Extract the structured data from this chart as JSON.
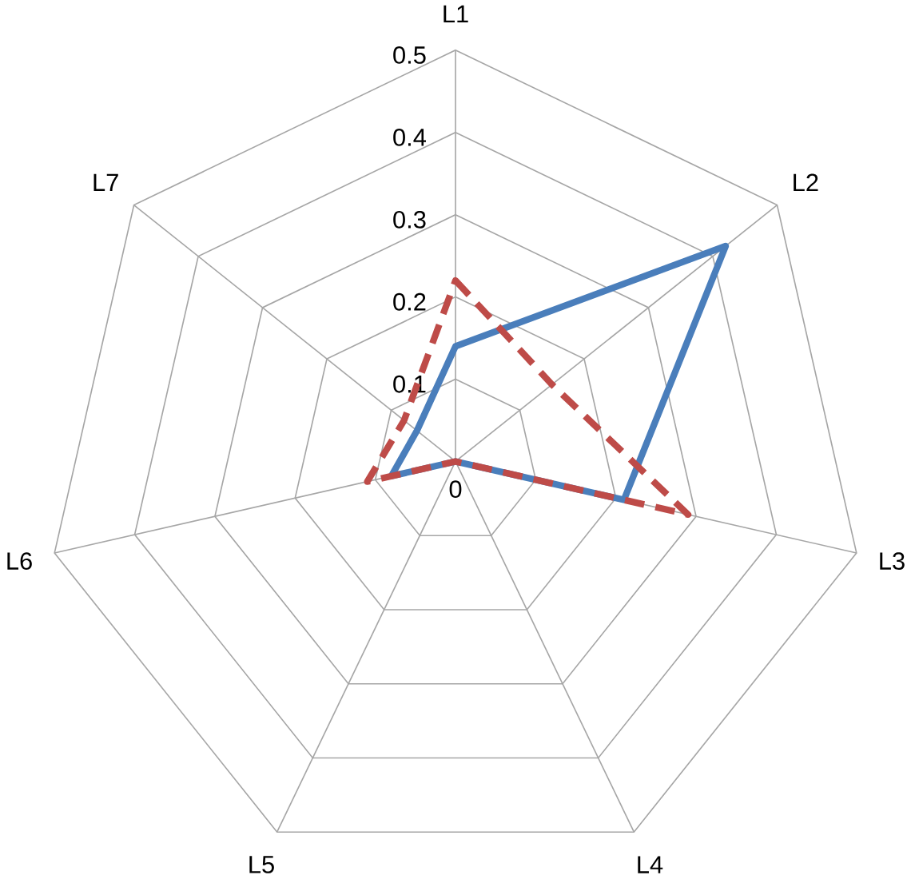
{
  "chart_data": {
    "type": "radar",
    "categories": [
      "L1",
      "L2",
      "L3",
      "L4",
      "L5",
      "L6",
      "L7"
    ],
    "ylim": [
      0,
      0.5
    ],
    "yticks": [
      0,
      0.1,
      0.2,
      0.3,
      0.4,
      0.5
    ],
    "grid": true,
    "marker": "none",
    "series": [
      {
        "color": "#4a7ebb",
        "line_style": "solid",
        "values": [
          0.14,
          0.42,
          0.21,
          0,
          0,
          0.08,
          0.06
        ]
      },
      {
        "color": "#be4b48",
        "line_style": "dashed",
        "values": [
          0.22,
          0.15,
          0.29,
          0,
          0,
          0.11,
          0.08
        ]
      }
    ]
  }
}
